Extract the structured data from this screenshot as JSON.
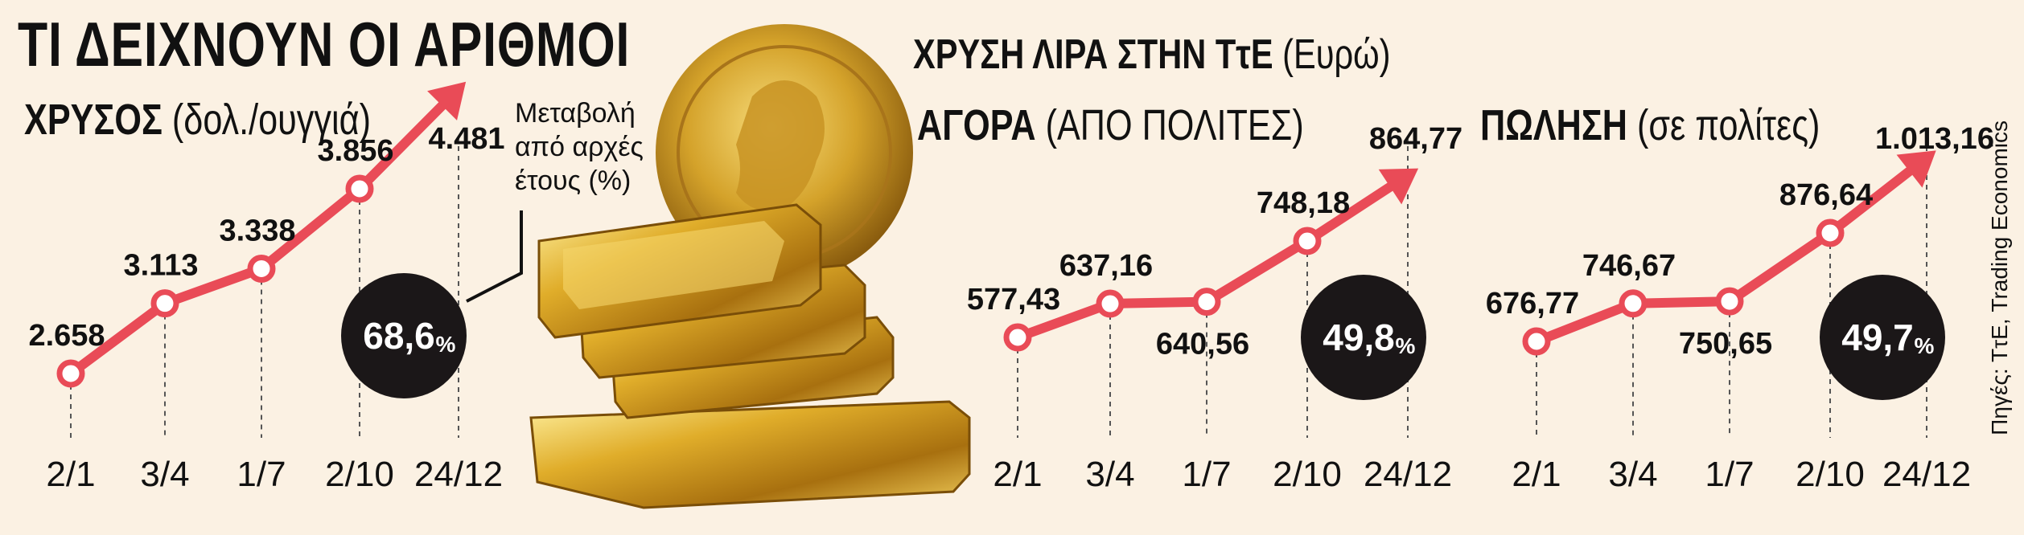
{
  "title": "ΤΙ ΔΕΙΧΝΟΥΝ ΟΙ ΑΡΙΘΜΟΙ",
  "note": [
    "Μεταβολή",
    "από αρχές",
    "έτους (%)"
  ],
  "source": "Πηγές: ΤτΕ, Trading Economics",
  "lira_header": {
    "title": "ΧΡΥΣΗ ΛΙΡΑ ΣΤΗΝ ΤτΕ",
    "unit": "(Ευρώ)"
  },
  "panels": {
    "gold": {
      "title": "ΧΡΥΣΟΣ",
      "unit": "(δολ./ουγγιά)",
      "change": "68,6",
      "change_suffix": "%"
    },
    "buy": {
      "title": "ΑΓΟΡΑ",
      "unit": "(ΑΠΟ ΠΟΛΙΤΕΣ)",
      "change": "49,8",
      "change_suffix": "%"
    },
    "sell": {
      "title": "ΠΩΛΗΣΗ",
      "unit": "(σε πολίτες)",
      "change": "49,7",
      "change_suffix": "%"
    }
  },
  "colors": {
    "line": "#e94b57",
    "circle": "#1b1718",
    "background": "#fbf1e3",
    "gold": "#d9a21c"
  },
  "images": [
    "gold-bars",
    "gold-sovereign-coin"
  ],
  "chart_data": [
    {
      "type": "line",
      "name": "gold",
      "x": [
        "2/1",
        "3/4",
        "1/7",
        "2/10",
        "24/12"
      ],
      "values": [
        2658,
        3113,
        3338,
        3856,
        4481
      ],
      "labels": [
        "2.658",
        "3.113",
        "3.338",
        "3.856",
        "4.481"
      ]
    },
    {
      "type": "line",
      "name": "buy",
      "x": [
        "2/1",
        "3/4",
        "1/7",
        "2/10",
        "24/12"
      ],
      "values": [
        577.43,
        637.16,
        640.56,
        748.18,
        864.77
      ],
      "labels": [
        "577,43",
        "637,16",
        "640,56",
        "748,18",
        "864,77"
      ]
    },
    {
      "type": "line",
      "name": "sell",
      "x": [
        "2/1",
        "3/4",
        "1/7",
        "2/10",
        "24/12"
      ],
      "values": [
        676.77,
        746.67,
        750.65,
        876.64,
        1013.16
      ],
      "labels": [
        "676,77",
        "746,67",
        "750,65",
        "876,64",
        "1.013,16"
      ]
    }
  ]
}
